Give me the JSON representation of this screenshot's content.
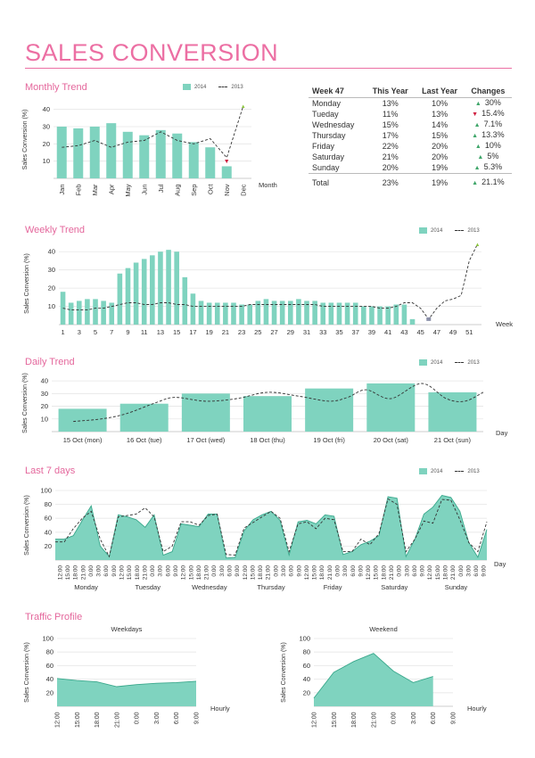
{
  "header": {
    "title": "SALES CONVERSION"
  },
  "sections": {
    "monthly": "Monthly Trend",
    "weekly": "Weekly Trend",
    "daily": "Daily Trend",
    "last7": "Last 7 days",
    "traffic": "Traffic Profile"
  },
  "legend": {
    "a": "2014",
    "b": "2013"
  },
  "week_table": {
    "headers": [
      "Week 47",
      "This Year",
      "Last Year",
      "Changes"
    ],
    "rows": [
      {
        "day": "Monday",
        "this_year": "13%",
        "last_year": "10%",
        "dir": "up",
        "change": "30%"
      },
      {
        "day": "Tueday",
        "this_year": "11%",
        "last_year": "13%",
        "dir": "down",
        "change": "15.4%"
      },
      {
        "day": "Wednesday",
        "this_year": "15%",
        "last_year": "14%",
        "dir": "up",
        "change": "7.1%"
      },
      {
        "day": "Thursday",
        "this_year": "17%",
        "last_year": "15%",
        "dir": "up",
        "change": "13.3%"
      },
      {
        "day": "Friday",
        "this_year": "22%",
        "last_year": "20%",
        "dir": "up",
        "change": "10%"
      },
      {
        "day": "Saturday",
        "this_year": "21%",
        "last_year": "20%",
        "dir": "up",
        "change": "5%"
      },
      {
        "day": "Sunday",
        "this_year": "20%",
        "last_year": "19%",
        "dir": "up",
        "change": "5.3%"
      }
    ],
    "total": {
      "day": "Total",
      "this_year": "23%",
      "last_year": "19%",
      "dir": "up",
      "change": "21.1%"
    }
  },
  "chart_data": [
    {
      "id": "monthly",
      "type": "bar",
      "ylabel": "Sales Conversion (%)",
      "xlabel": "Month",
      "ylim": [
        0,
        45
      ],
      "yticks": [
        10,
        20,
        30,
        40
      ],
      "categories": [
        "Jan",
        "Feb",
        "Mar",
        "Apr",
        "May",
        "Jun",
        "Jul",
        "Aug",
        "Sep",
        "Oct",
        "Nov",
        "Dec"
      ],
      "series": [
        {
          "name": "2014",
          "values": [
            30,
            29,
            30,
            32,
            27,
            25,
            28,
            26,
            21,
            18,
            7,
            null
          ]
        },
        {
          "name": "2013",
          "values": [
            18,
            19,
            22,
            18,
            21,
            22,
            27,
            22,
            20,
            23,
            12,
            42
          ]
        }
      ]
    },
    {
      "id": "weekly",
      "type": "bar",
      "ylabel": "Sales Conversion (%)",
      "xlabel": "Week",
      "ylim": [
        0,
        45
      ],
      "yticks": [
        10,
        20,
        30,
        40
      ],
      "x": [
        1,
        2,
        3,
        4,
        5,
        6,
        7,
        8,
        9,
        10,
        11,
        12,
        13,
        14,
        15,
        16,
        17,
        18,
        19,
        20,
        21,
        22,
        23,
        24,
        25,
        26,
        27,
        28,
        29,
        30,
        31,
        32,
        33,
        34,
        35,
        36,
        37,
        38,
        39,
        40,
        41,
        42,
        43,
        44,
        45,
        46,
        47,
        48,
        49,
        50,
        51,
        52
      ],
      "xtick_labels": [
        "1",
        "3",
        "5",
        "7",
        "9",
        "11",
        "13",
        "15",
        "17",
        "19",
        "21",
        "23",
        "25",
        "27",
        "29",
        "31",
        "33",
        "35",
        "37",
        "39",
        "41",
        "43",
        "45",
        "47",
        "49",
        "51"
      ],
      "series": [
        {
          "name": "2014",
          "values": [
            18,
            12,
            13,
            14,
            14,
            13,
            12,
            28,
            31,
            34,
            36,
            38,
            40,
            41,
            40,
            26,
            17,
            13,
            12,
            12,
            12,
            12,
            11,
            11,
            13,
            14,
            13,
            13,
            13,
            14,
            13,
            13,
            12,
            12,
            12,
            12,
            12,
            10,
            10,
            10,
            10,
            11,
            11,
            3,
            null,
            null,
            null,
            null,
            null,
            null,
            null,
            null
          ]
        },
        {
          "name": "2013",
          "values": [
            9,
            8,
            8,
            8,
            9,
            9,
            10,
            11,
            12,
            12,
            11,
            11,
            12,
            12,
            11,
            11,
            10,
            10,
            10,
            10,
            10,
            10,
            10,
            11,
            11,
            11,
            11,
            11,
            11,
            11,
            11,
            11,
            10,
            10,
            10,
            10,
            10,
            10,
            10,
            9,
            9,
            10,
            12,
            12,
            9,
            3,
            9,
            13,
            14,
            16,
            35,
            44
          ]
        }
      ]
    },
    {
      "id": "daily",
      "type": "bar",
      "ylabel": "Sales Conversion (%)",
      "xlabel": "Day",
      "ylim": [
        0,
        45
      ],
      "yticks": [
        10,
        20,
        30,
        40
      ],
      "categories": [
        "15 Oct (mon)",
        "16 Oct (tue)",
        "17 Oct (wed)",
        "18 Oct (thu)",
        "19 Oct (fri)",
        "20 Oct (sat)",
        "21 Oct (sun)"
      ],
      "series": [
        {
          "name": "2014",
          "values": [
            18,
            22,
            30,
            28,
            34,
            38,
            31
          ]
        },
        {
          "name": "2013",
          "line": [
            [
              -0.15,
              8
            ],
            [
              0.3,
              10
            ],
            [
              0.7,
              14
            ],
            [
              1.2,
              23
            ],
            [
              1.5,
              27
            ],
            [
              2.0,
              24
            ],
            [
              2.5,
              26
            ],
            [
              3.0,
              31
            ],
            [
              3.5,
              28
            ],
            [
              4.0,
              24
            ],
            [
              4.3,
              27
            ],
            [
              4.6,
              33
            ],
            [
              5.0,
              26
            ],
            [
              5.5,
              38
            ],
            [
              5.9,
              26
            ],
            [
              6.2,
              24
            ],
            [
              6.5,
              31
            ]
          ]
        }
      ]
    },
    {
      "id": "last7",
      "type": "area",
      "ylabel": "Sales Conversion (%)",
      "xlabel": "Day",
      "ylim": [
        0,
        100
      ],
      "yticks": [
        20,
        40,
        60,
        80,
        100
      ],
      "days": [
        "Monday",
        "Tuesday",
        "Wednesday",
        "Thursday",
        "Friday",
        "Saturday",
        "Sunday"
      ],
      "hour_labels": [
        "12:00",
        "15:00",
        "18:00",
        "21:00",
        "0:00",
        "3:00",
        "6:00",
        "9:00"
      ],
      "series": [
        {
          "name": "2014",
          "values": [
            30,
            30,
            35,
            57,
            78,
            20,
            5,
            65,
            62,
            58,
            47,
            65,
            7,
            12,
            52,
            50,
            48,
            66,
            66,
            3,
            4,
            42,
            58,
            65,
            70,
            57,
            7,
            55,
            57,
            52,
            65,
            63,
            8,
            12,
            22,
            27,
            35,
            91,
            89,
            5,
            30,
            66,
            76,
            93,
            90,
            70,
            25,
            4,
            44
          ]
        },
        {
          "name": "2013",
          "values": [
            26,
            26,
            45,
            60,
            70,
            30,
            5,
            62,
            64,
            66,
            75,
            62,
            12,
            20,
            55,
            55,
            50,
            64,
            66,
            8,
            7,
            46,
            54,
            62,
            70,
            60,
            12,
            52,
            55,
            45,
            60,
            58,
            12,
            12,
            30,
            22,
            38,
            88,
            80,
            12,
            30,
            56,
            53,
            87,
            86,
            58,
            25,
            12,
            55
          ]
        }
      ]
    },
    {
      "id": "weekdays",
      "type": "area",
      "title": "Weekdays",
      "ylabel": "Sales Conversion (%)",
      "xlabel": "Hourly",
      "ylim": [
        0,
        100
      ],
      "yticks": [
        20,
        40,
        60,
        80,
        100
      ],
      "categories": [
        "12:00",
        "15:00",
        "18:00",
        "21:00",
        "0:00",
        "3:00",
        "6:00",
        "9:00"
      ],
      "values": [
        41,
        38,
        36,
        29,
        32,
        34,
        35,
        37
      ]
    },
    {
      "id": "weekend",
      "type": "area",
      "title": "Weekend",
      "ylabel": "Sales Conversion (%)",
      "xlabel": "Hourly",
      "ylim": [
        0,
        100
      ],
      "yticks": [
        20,
        40,
        60,
        80,
        100
      ],
      "categories": [
        "12:00",
        "15:00",
        "18:00",
        "21:00",
        "0:00",
        "3:00",
        "6:00",
        "9:00"
      ],
      "values": [
        12,
        50,
        66,
        78,
        52,
        35,
        44,
        null
      ]
    }
  ],
  "colors": {
    "bar": "#7fd3bf",
    "area": "#7fd3bf",
    "area_line": "#3aa88c",
    "dash": "#333333",
    "accent": "#ec6fa3",
    "down": "#d02040",
    "up": "#8cc63f"
  }
}
